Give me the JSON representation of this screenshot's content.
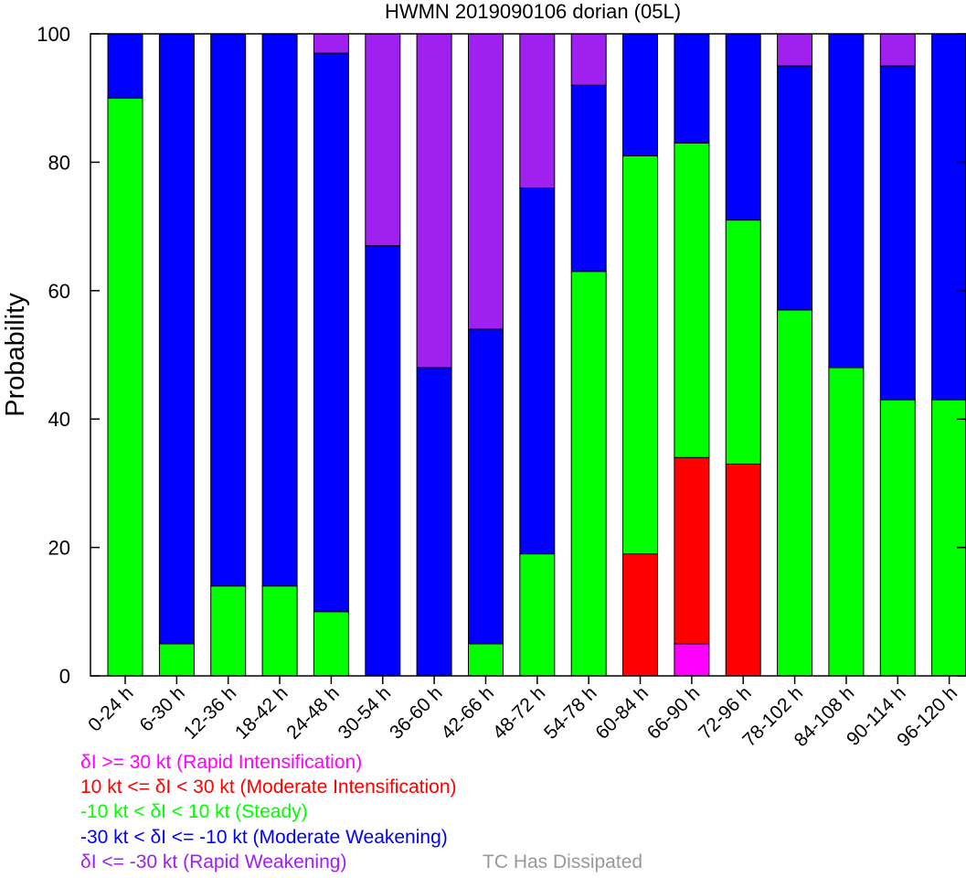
{
  "chart_data": {
    "type": "bar",
    "stacked": true,
    "title": "HWMN 2019090106 dorian (05L)",
    "xlabel": "",
    "ylabel": "Probability",
    "ylim": [
      0,
      100
    ],
    "yticks": [
      0,
      20,
      40,
      60,
      80,
      100
    ],
    "grid": false,
    "legend": "bottom",
    "categories": [
      "0-24 h",
      "6-30 h",
      "12-36 h",
      "18-42 h",
      "24-48 h",
      "30-54 h",
      "36-60 h",
      "42-66 h",
      "48-72 h",
      "54-78 h",
      "60-84 h",
      "66-90 h",
      "72-96 h",
      "78-102 h",
      "84-108 h",
      "90-114 h",
      "96-120 h"
    ],
    "series": [
      {
        "name": "δI >= 30 kt (Rapid Intensification)",
        "color": "#ff00ff",
        "values": [
          0,
          0,
          0,
          0,
          0,
          0,
          0,
          0,
          0,
          0,
          0,
          5,
          0,
          0,
          0,
          0,
          0
        ]
      },
      {
        "name": "10 kt <= δI < 30 kt (Moderate Intensification)",
        "color": "#ff0000",
        "values": [
          0,
          0,
          0,
          0,
          0,
          0,
          0,
          0,
          0,
          0,
          19,
          29,
          33,
          0,
          0,
          0,
          0
        ]
      },
      {
        "name": "-10 kt < δI < 10 kt (Steady)",
        "color": "#00ff00",
        "values": [
          90,
          5,
          14,
          14,
          10,
          0,
          0,
          5,
          19,
          63,
          62,
          49,
          38,
          57,
          48,
          43,
          43
        ]
      },
      {
        "name": "-30 kt < δI <= -10 kt (Moderate Weakening)",
        "color": "#0000ff",
        "values": [
          10,
          95,
          86,
          86,
          87,
          67,
          48,
          49,
          57,
          29,
          19,
          17,
          29,
          38,
          52,
          52,
          57
        ]
      },
      {
        "name": "δI <= -30 kt (Rapid Weakening)",
        "color": "#a020f0",
        "values": [
          0,
          0,
          0,
          0,
          3,
          33,
          52,
          46,
          24,
          8,
          0,
          0,
          0,
          5,
          0,
          5,
          0
        ]
      }
    ]
  },
  "dissipated_label": "TC Has Dissipated",
  "dissipated_color": "#999999"
}
